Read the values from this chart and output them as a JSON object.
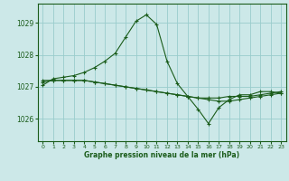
{
  "title": "Graphe pression niveau de la mer (hPa)",
  "bg_color": "#cce8e8",
  "plot_bg_color": "#cce8e8",
  "grid_color": "#99cccc",
  "line_color": "#1a5c1a",
  "marker_color": "#1a5c1a",
  "xlim": [
    -0.5,
    23.5
  ],
  "ylim": [
    1025.3,
    1029.6
  ],
  "yticks": [
    1026,
    1027,
    1028,
    1029
  ],
  "xticks": [
    0,
    1,
    2,
    3,
    4,
    5,
    6,
    7,
    8,
    9,
    10,
    11,
    12,
    13,
    14,
    15,
    16,
    17,
    18,
    19,
    20,
    21,
    22,
    23
  ],
  "series": [
    {
      "x": [
        0,
        1,
        2,
        3,
        4,
        5,
        6,
        7,
        8,
        9,
        10,
        11,
        12,
        13,
        14,
        15,
        16,
        17,
        18,
        19,
        20,
        21,
        22,
        23
      ],
      "y": [
        1027.15,
        1027.2,
        1027.2,
        1027.2,
        1027.2,
        1027.15,
        1027.1,
        1027.05,
        1027.0,
        1026.95,
        1026.9,
        1026.85,
        1026.8,
        1026.75,
        1026.7,
        1026.65,
        1026.65,
        1026.65,
        1026.7,
        1026.7,
        1026.7,
        1026.75,
        1026.8,
        1026.85
      ]
    },
    {
      "x": [
        0,
        1,
        2,
        3,
        4,
        5,
        6,
        7,
        8,
        9,
        10,
        11,
        12,
        13,
        14,
        15,
        16,
        17,
        18,
        19,
        20,
        21,
        22,
        23
      ],
      "y": [
        1027.2,
        1027.2,
        1027.2,
        1027.2,
        1027.2,
        1027.15,
        1027.1,
        1027.05,
        1027.0,
        1026.95,
        1026.9,
        1026.85,
        1026.8,
        1026.75,
        1026.7,
        1026.65,
        1026.6,
        1026.55,
        1026.55,
        1026.6,
        1026.65,
        1026.7,
        1026.75,
        1026.8
      ]
    },
    {
      "x": [
        0,
        1,
        2,
        3,
        4,
        5,
        6,
        7,
        8,
        9,
        10,
        11,
        12,
        13,
        14,
        15,
        16,
        17,
        18,
        19,
        20,
        21,
        22,
        23
      ],
      "y": [
        1027.05,
        1027.25,
        1027.3,
        1027.35,
        1027.45,
        1027.6,
        1027.8,
        1028.05,
        1028.55,
        1029.05,
        1029.25,
        1028.95,
        1027.8,
        1027.1,
        1026.7,
        1026.3,
        1025.85,
        1026.35,
        1026.6,
        1026.75,
        1026.75,
        1026.85,
        1026.85,
        1026.8
      ]
    }
  ]
}
